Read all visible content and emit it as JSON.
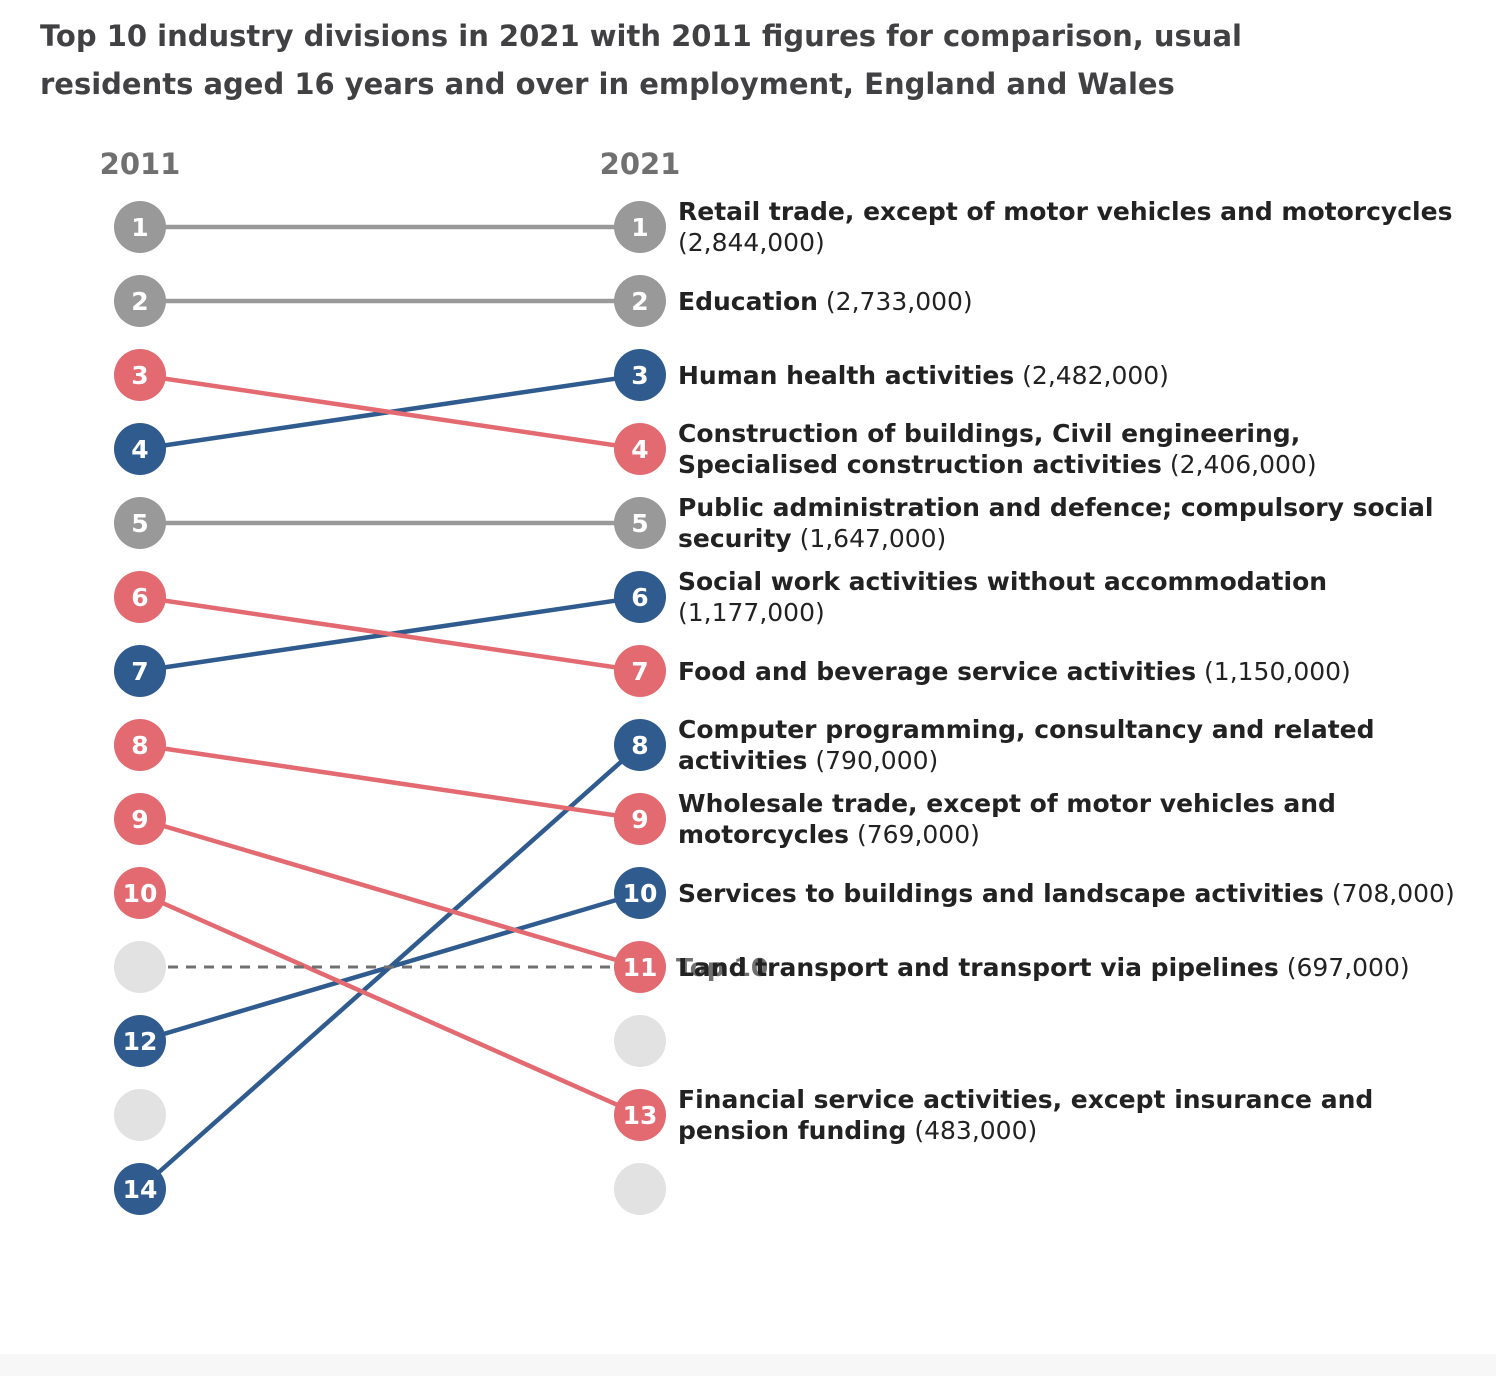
{
  "title": "Top 10 industry divisions in 2021 with 2011 figures for comparison, usual residents aged 16 years and over in employment, England and Wales",
  "colors": {
    "unchanged": "#999999",
    "fell": "#e26a70",
    "rose": "#2f5b8f",
    "empty": "#e2e2e2",
    "divider": "#707071"
  },
  "chart_data": {
    "type": "slope",
    "columns": [
      "2011",
      "2021"
    ],
    "divider_label": "Top 10",
    "series": [
      {
        "name": "Retail trade, except of motor vehicles and motorcycles",
        "value": "(2,844,000)",
        "rank_2011": 1,
        "rank_2021": 1,
        "change": "unchanged"
      },
      {
        "name": "Education",
        "value": "(2,733,000)",
        "rank_2011": 2,
        "rank_2021": 2,
        "change": "unchanged"
      },
      {
        "name": "Human health activities",
        "value": "(2,482,000)",
        "rank_2011": 4,
        "rank_2021": 3,
        "change": "rose"
      },
      {
        "name": "Construction of buildings, Civil engineering, Specialised construction activities",
        "value": "(2,406,000)",
        "rank_2011": 3,
        "rank_2021": 4,
        "change": "fell"
      },
      {
        "name": "Public administration and defence; compulsory social security",
        "value": "(1,647,000)",
        "rank_2011": 5,
        "rank_2021": 5,
        "change": "unchanged"
      },
      {
        "name": "Social work activities without accommodation",
        "value": "(1,177,000)",
        "rank_2011": 7,
        "rank_2021": 6,
        "change": "rose"
      },
      {
        "name": "Food and beverage service activities",
        "value": "(1,150,000)",
        "rank_2011": 6,
        "rank_2021": 7,
        "change": "fell"
      },
      {
        "name": "Computer programming, consultancy and related activities",
        "value": "(790,000)",
        "rank_2011": 14,
        "rank_2021": 8,
        "change": "rose"
      },
      {
        "name": "Wholesale trade, except of motor vehicles and motorcycles",
        "value": "(769,000)",
        "rank_2011": 8,
        "rank_2021": 9,
        "change": "fell"
      },
      {
        "name": "Services to buildings and landscape activities",
        "value": "(708,000)",
        "rank_2011": 12,
        "rank_2021": 10,
        "change": "rose"
      },
      {
        "name": "Land transport and transport via pipelines",
        "value": "(697,000)",
        "rank_2011": 9,
        "rank_2021": 11,
        "change": "fell"
      },
      {
        "name": "Financial service activities, except insurance and pension funding",
        "value": "(483,000)",
        "rank_2011": 10,
        "rank_2021": 13,
        "change": "fell"
      }
    ],
    "empty_slots": {
      "2011": [
        11,
        13
      ],
      "2021": [
        12,
        14
      ]
    }
  }
}
